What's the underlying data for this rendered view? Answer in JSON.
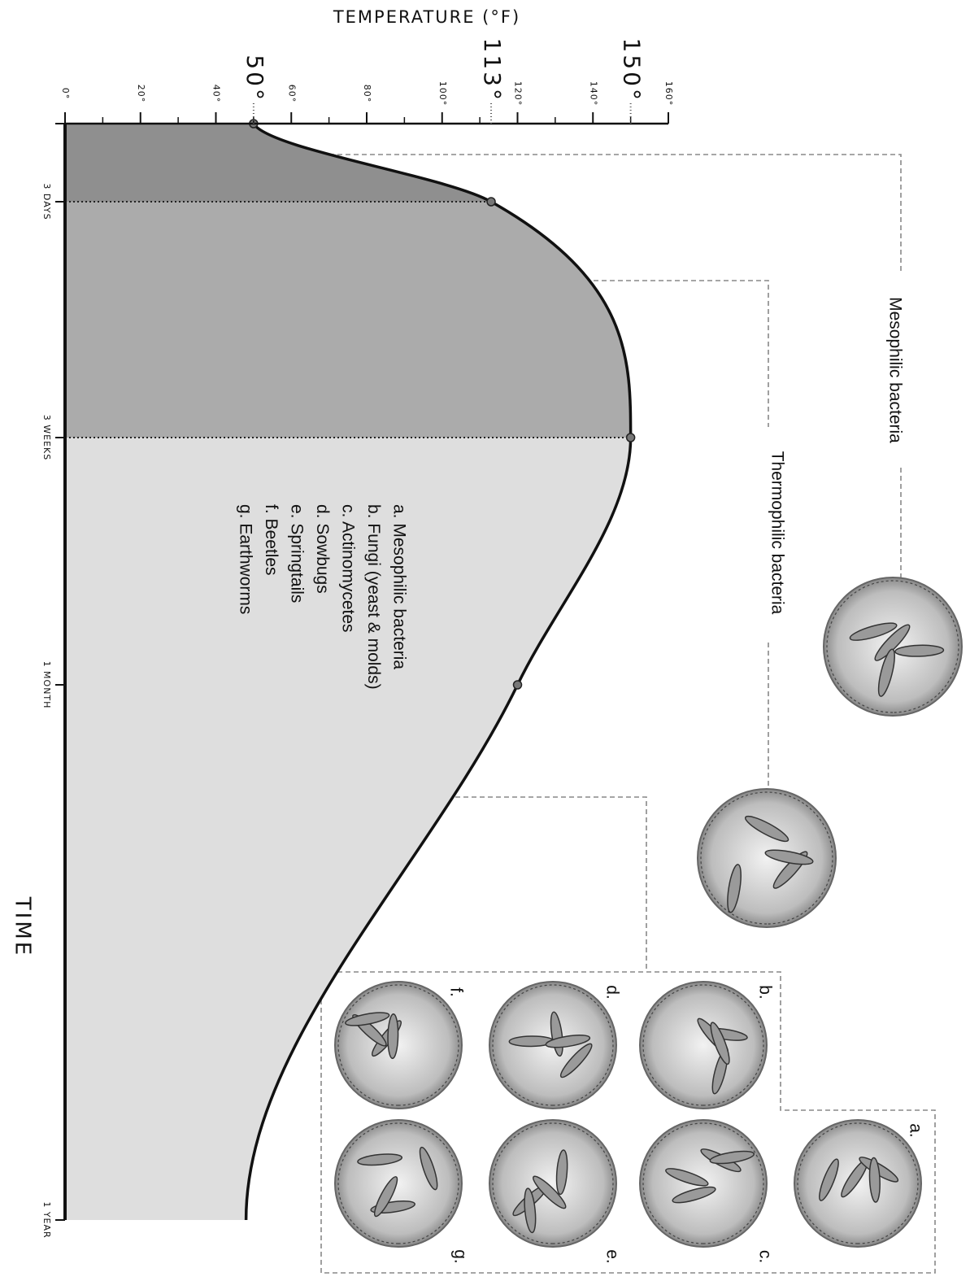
{
  "chart_data": {
    "type": "area",
    "ylabel": "TEMPERATURE (°F)",
    "xlabel": "TIME",
    "categories": [
      null,
      "3 DAYS",
      "3 WEEKS",
      "1 MONTH",
      "1 YEAR"
    ],
    "values": [
      50,
      113,
      150,
      120,
      48
    ],
    "ylim": [
      0,
      160
    ],
    "yticks": [
      {
        "value": 0,
        "label": "0°"
      },
      {
        "value": 20,
        "label": "20°"
      },
      {
        "value": 40,
        "label": "40°"
      },
      {
        "value": 60,
        "label": "60°"
      },
      {
        "value": 80,
        "label": "80°"
      },
      {
        "value": 100,
        "label": "100°"
      },
      {
        "value": 120,
        "label": "120°"
      },
      {
        "value": 140,
        "label": "140°"
      },
      {
        "value": 160,
        "label": "160°"
      }
    ],
    "minor_ticks": [
      10,
      30,
      50,
      70,
      90,
      110,
      130,
      150
    ],
    "highlight_ticks": [
      {
        "value": 50,
        "label": "50°"
      },
      {
        "value": 113,
        "label": "113°"
      },
      {
        "value": 150,
        "label": "150°"
      }
    ],
    "line_color": "#111111",
    "colors": [
      "#8f8f8f",
      "#ababab",
      "#dedede"
    ]
  },
  "stages": [
    "Mesophilic bacteria",
    "Thermophilic bacteria"
  ],
  "legend": [
    "a. Mesophilic bacteria",
    "b. Fungi (yeast & molds)",
    "c. Actinomycetes",
    "d. Sowbugs",
    "e. Springtails",
    "f. Beetles",
    "g. Earthworms"
  ],
  "panels": [
    "a.",
    "b.",
    "c.",
    "d.",
    "e.",
    "f.",
    "g."
  ]
}
